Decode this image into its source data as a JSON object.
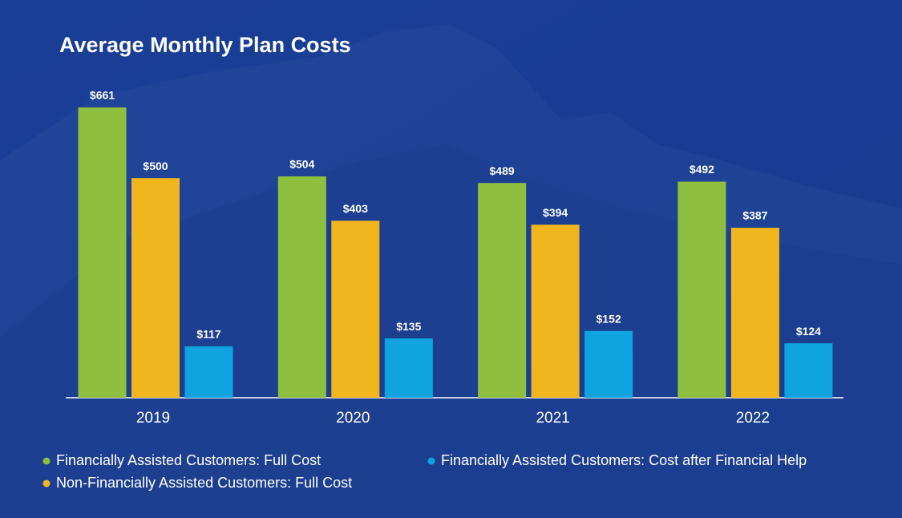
{
  "chart_data": {
    "type": "bar",
    "title": "Average Monthly Plan Costs",
    "categories": [
      "2019",
      "2020",
      "2021",
      "2022"
    ],
    "series": [
      {
        "name": "Financially Assisted Customers: Full Cost",
        "color": "#8fbf3f",
        "values": [
          661,
          504,
          489,
          492
        ],
        "value_labels": [
          "$661",
          "$504",
          "$489",
          "$492"
        ]
      },
      {
        "name": "Non-Financially Assisted Customers: Full Cost",
        "color": "#f1b51d",
        "values": [
          500,
          403,
          394,
          387
        ],
        "value_labels": [
          "$500",
          "$403",
          "$394",
          "$387"
        ]
      },
      {
        "name": "Financially Assisted Customers: Cost after Financial Help",
        "color": "#0fa4df",
        "values": [
          117,
          135,
          152,
          124
        ],
        "value_labels": [
          "$117",
          "$135",
          "$152",
          "$124"
        ]
      }
    ]
  }
}
